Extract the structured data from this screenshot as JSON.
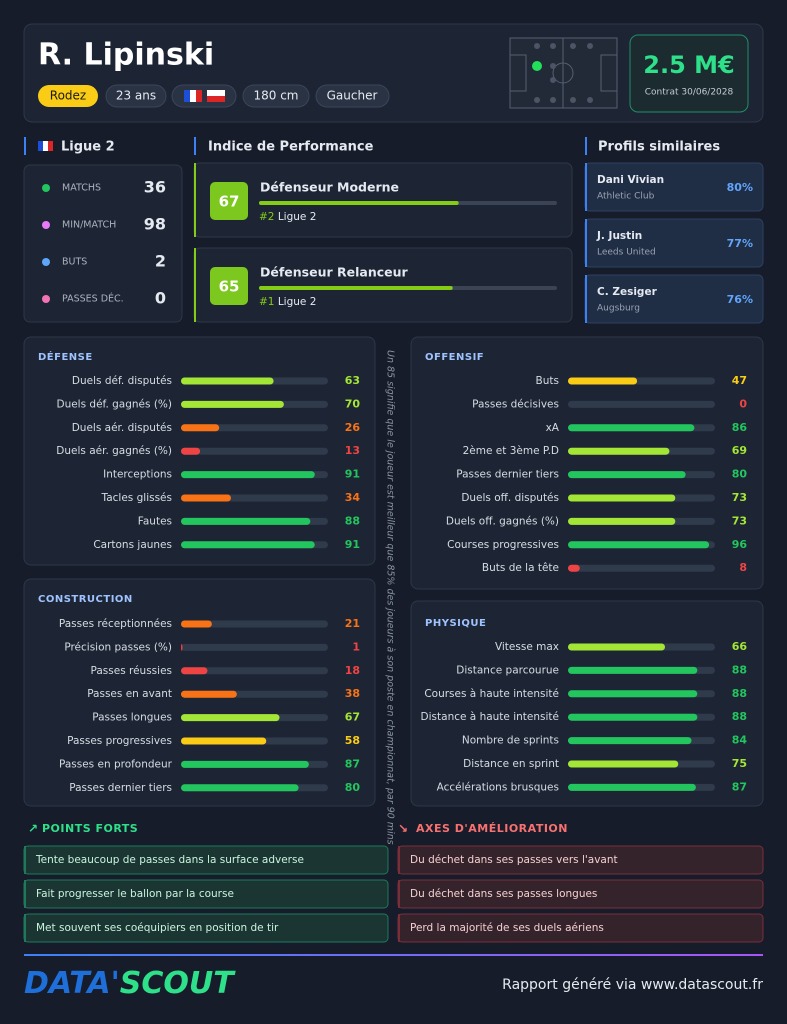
{
  "header": {
    "name": "R. Lipinski",
    "club": "Rodez",
    "age": "23 ans",
    "height": "180 cm",
    "foot": "Gaucher",
    "value": "2.5 M€",
    "contract": "Contrat 30/06/2028"
  },
  "league": {
    "title": "Ligue 2",
    "stats": [
      {
        "label": "MATCHS",
        "value": 36
      },
      {
        "label": "MIN/MATCH",
        "value": 98
      },
      {
        "label": "BUTS",
        "value": 2
      },
      {
        "label": "PASSES DÉC.",
        "value": 0
      }
    ]
  },
  "performance": {
    "title": "Indice de Performance",
    "items": [
      {
        "score": 67,
        "role": "Défenseur Moderne",
        "rank": "#2",
        "league": "Ligue 2"
      },
      {
        "score": 65,
        "role": "Défenseur Relanceur",
        "rank": "#1",
        "league": "Ligue 2"
      }
    ]
  },
  "similar": {
    "title": "Profils similaires",
    "items": [
      {
        "name": "Dani Vivian",
        "club": "Athletic Club",
        "match": "80%"
      },
      {
        "name": "J. Justin",
        "club": "Leeds United",
        "match": "77%"
      },
      {
        "name": "C. Zesiger",
        "club": "Augsburg",
        "match": "76%"
      }
    ]
  },
  "sections": [
    {
      "title": "DÉFENSE",
      "rows": [
        {
          "label": "Duels déf. disputés",
          "value": 63
        },
        {
          "label": "Duels déf. gagnés (%)",
          "value": 70
        },
        {
          "label": "Duels aér. disputés",
          "value": 26
        },
        {
          "label": "Duels aér. gagnés (%)",
          "value": 13
        },
        {
          "label": "Interceptions",
          "value": 91
        },
        {
          "label": "Tacles glissés",
          "value": 34
        },
        {
          "label": "Fautes",
          "value": 88
        },
        {
          "label": "Cartons jaunes",
          "value": 91
        }
      ]
    },
    {
      "title": "CONSTRUCTION",
      "rows": [
        {
          "label": "Passes réceptionnées",
          "value": 21
        },
        {
          "label": "Précision passes (%)",
          "value": 1
        },
        {
          "label": "Passes réussies",
          "value": 18
        },
        {
          "label": "Passes en avant",
          "value": 38
        },
        {
          "label": "Passes longues",
          "value": 67
        },
        {
          "label": "Passes progressives",
          "value": 58
        },
        {
          "label": "Passes en profondeur",
          "value": 87
        },
        {
          "label": "Passes dernier tiers",
          "value": 80
        }
      ]
    },
    {
      "title": "OFFENSIF",
      "rows": [
        {
          "label": "Buts",
          "value": 47
        },
        {
          "label": "Passes décisives",
          "value": 0
        },
        {
          "label": "xA",
          "value": 86
        },
        {
          "label": "2ème et 3ème P.D",
          "value": 69
        },
        {
          "label": "Passes dernier tiers",
          "value": 80
        },
        {
          "label": "Duels off. disputés",
          "value": 73
        },
        {
          "label": "Duels off. gagnés (%)",
          "value": 73
        },
        {
          "label": "Courses progressives",
          "value": 96
        },
        {
          "label": "Buts de la tête",
          "value": 8
        }
      ]
    },
    {
      "title": "PHYSIQUE",
      "rows": [
        {
          "label": "Vitesse max",
          "value": 66
        },
        {
          "label": "Distance parcourue",
          "value": 88
        },
        {
          "label": "Courses à haute intensité",
          "value": 88
        },
        {
          "label": "Distance à haute intensité",
          "value": 88
        },
        {
          "label": "Nombre de sprints",
          "value": 84
        },
        {
          "label": "Distance en sprint",
          "value": 75
        },
        {
          "label": "Accélérations brusques",
          "value": 87
        }
      ]
    }
  ],
  "note": "Un 85 signifie que le joueur est meilleur que 85% des joueurs à son poste en championnat, par 90 mins",
  "strengths": {
    "title": "POINTS FORTS",
    "items": [
      "Tente beaucoup de passes dans la surface adverse",
      "Fait progresser le ballon par la course",
      "Met souvent ses coéquipiers en position de tir"
    ]
  },
  "improvements": {
    "title": "AXES D'AMÉLIORATION",
    "items": [
      "Du déchet dans ses passes vers l'avant",
      "Du déchet dans ses passes longues",
      "Perd la majorité de ses duels aériens"
    ]
  },
  "footer": {
    "logo": [
      "DATA'",
      "SCOUT"
    ],
    "text": "Rapport généré via www.datascout.fr"
  }
}
